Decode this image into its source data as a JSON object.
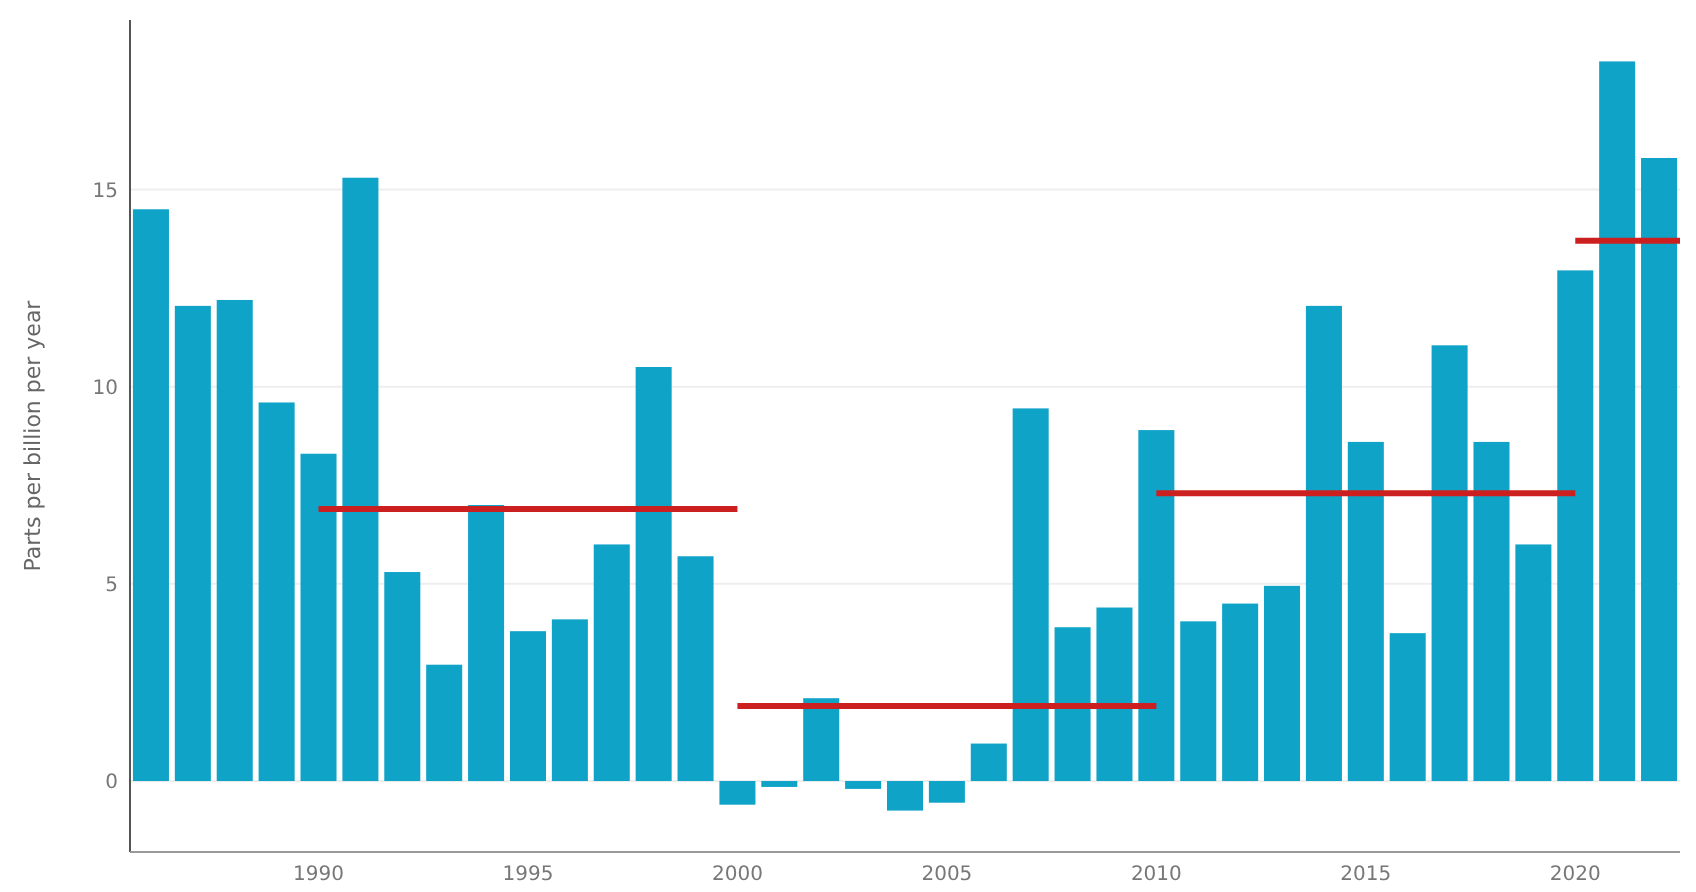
{
  "chart_data": {
    "type": "bar",
    "ylabel": "Parts per billion per year",
    "x": [
      1986,
      1987,
      1988,
      1989,
      1990,
      1991,
      1992,
      1993,
      1994,
      1995,
      1996,
      1997,
      1998,
      1999,
      2000,
      2001,
      2002,
      2003,
      2004,
      2005,
      2006,
      2007,
      2008,
      2009,
      2010,
      2011,
      2012,
      2013,
      2014,
      2015,
      2016,
      2017,
      2018,
      2019,
      2020,
      2021,
      2022
    ],
    "series": [
      {
        "color": "#0fa3c8",
        "values": [
          14.5,
          12.05,
          12.2,
          9.6,
          8.3,
          15.3,
          5.3,
          2.95,
          7.0,
          3.8,
          4.1,
          6.0,
          10.5,
          5.7,
          -0.6,
          -0.15,
          2.1,
          -0.2,
          -0.75,
          -0.55,
          0.95,
          9.45,
          3.9,
          4.4,
          8.9,
          4.05,
          4.5,
          4.95,
          12.05,
          8.6,
          3.75,
          11.05,
          8.6,
          6.0,
          12.95,
          18.25,
          15.8
        ]
      },
      {
        "type": "line",
        "color": "#cc2020",
        "x": [
          1990,
          2000
        ],
        "values": [
          6.9,
          6.9
        ]
      },
      {
        "type": "line",
        "color": "#cc2020",
        "x": [
          2000,
          2010
        ],
        "values": [
          1.9,
          1.9
        ]
      },
      {
        "type": "line",
        "color": "#cc2020",
        "x": [
          2010,
          2020
        ],
        "values": [
          7.3,
          7.3
        ]
      },
      {
        "type": "line",
        "color": "#cc2020",
        "x": [
          2020,
          2022.5
        ],
        "values": [
          13.7,
          13.7
        ]
      }
    ],
    "xlim": [
      1985.5,
      2022.5
    ],
    "xticks": [
      1990,
      1995,
      2000,
      2005,
      2010,
      2015,
      2020
    ],
    "ylim": [
      -1.8,
      19.3
    ],
    "yticks": [
      0,
      5,
      10,
      15
    ],
    "grid": "y"
  }
}
